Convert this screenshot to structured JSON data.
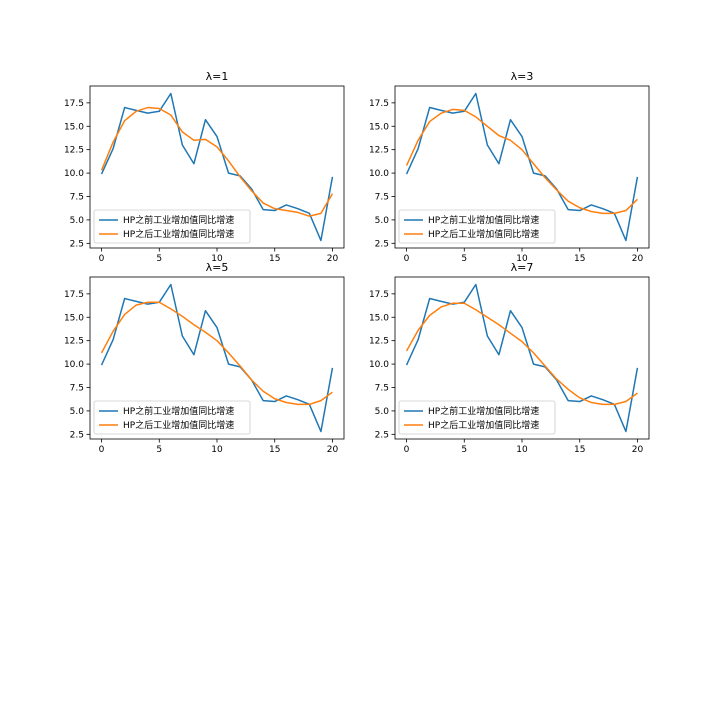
{
  "chart_data": [
    {
      "type": "line",
      "title": "λ=1",
      "x": [
        0,
        1,
        2,
        3,
        4,
        5,
        6,
        7,
        8,
        9,
        10,
        11,
        12,
        13,
        14,
        15,
        16,
        17,
        18,
        19,
        20
      ],
      "series": [
        {
          "name": "HP之前工业增加值同比增速",
          "color": "#1f77b4",
          "values": [
            9.9,
            12.6,
            17.0,
            16.7,
            16.4,
            16.6,
            18.5,
            13.0,
            11.0,
            15.7,
            13.9,
            10.0,
            9.7,
            8.3,
            6.1,
            6.0,
            6.6,
            6.2,
            5.7,
            2.8,
            9.6
          ]
        },
        {
          "name": "HP之后工业增加值同比增速",
          "color": "#ff7f0e",
          "values": [
            10.3,
            13.3,
            15.6,
            16.6,
            17.0,
            16.9,
            16.2,
            14.4,
            13.5,
            13.6,
            12.8,
            11.3,
            9.6,
            8.1,
            6.8,
            6.2,
            6.0,
            5.8,
            5.4,
            5.7,
            7.8
          ]
        }
      ],
      "xticks": [
        0,
        5,
        10,
        15,
        20
      ],
      "yticks": [
        "2.5",
        "5.0",
        "7.5",
        "10.0",
        "12.5",
        "15.0",
        "17.5"
      ],
      "xlim": [
        -1,
        21
      ],
      "ylim": [
        2.0,
        19.3
      ],
      "legend": "lower-left",
      "grid": false
    },
    {
      "type": "line",
      "title": "λ=3",
      "x": [
        0,
        1,
        2,
        3,
        4,
        5,
        6,
        7,
        8,
        9,
        10,
        11,
        12,
        13,
        14,
        15,
        16,
        17,
        18,
        19,
        20
      ],
      "series": [
        {
          "name": "HP之前工业增加值同比增速",
          "color": "#1f77b4",
          "values": [
            9.9,
            12.6,
            17.0,
            16.7,
            16.4,
            16.6,
            18.5,
            13.0,
            11.0,
            15.7,
            13.9,
            10.0,
            9.7,
            8.3,
            6.1,
            6.0,
            6.6,
            6.2,
            5.7,
            2.8,
            9.6
          ]
        },
        {
          "name": "HP之后工业增加值同比增速",
          "color": "#ff7f0e",
          "values": [
            10.8,
            13.5,
            15.5,
            16.4,
            16.8,
            16.7,
            16.0,
            15.0,
            14.0,
            13.5,
            12.5,
            11.0,
            9.5,
            8.2,
            7.0,
            6.3,
            5.9,
            5.7,
            5.7,
            6.0,
            7.2
          ]
        }
      ],
      "xticks": [
        0,
        5,
        10,
        15,
        20
      ],
      "yticks": [
        "2.5",
        "5.0",
        "7.5",
        "10.0",
        "12.5",
        "15.0",
        "17.5"
      ],
      "xlim": [
        -1,
        21
      ],
      "ylim": [
        2.0,
        19.3
      ],
      "legend": "lower-left",
      "grid": false
    },
    {
      "type": "line",
      "title": "λ=5",
      "x": [
        0,
        1,
        2,
        3,
        4,
        5,
        6,
        7,
        8,
        9,
        10,
        11,
        12,
        13,
        14,
        15,
        16,
        17,
        18,
        19,
        20
      ],
      "series": [
        {
          "name": "HP之前工业增加值同比增速",
          "color": "#1f77b4",
          "values": [
            9.9,
            12.6,
            17.0,
            16.7,
            16.4,
            16.6,
            18.5,
            13.0,
            11.0,
            15.7,
            13.9,
            10.0,
            9.7,
            8.3,
            6.1,
            6.0,
            6.6,
            6.2,
            5.7,
            2.8,
            9.6
          ]
        },
        {
          "name": "HP之后工业增加值同比增速",
          "color": "#ff7f0e",
          "values": [
            11.2,
            13.5,
            15.3,
            16.3,
            16.6,
            16.6,
            15.9,
            15.1,
            14.2,
            13.4,
            12.5,
            11.2,
            9.8,
            8.3,
            7.1,
            6.3,
            5.9,
            5.7,
            5.7,
            6.1,
            7.0
          ]
        }
      ],
      "xticks": [
        0,
        5,
        10,
        15,
        20
      ],
      "yticks": [
        "2.5",
        "5.0",
        "7.5",
        "10.0",
        "12.5",
        "15.0",
        "17.5"
      ],
      "xlim": [
        -1,
        21
      ],
      "ylim": [
        2.0,
        19.3
      ],
      "legend": "lower-left",
      "grid": false
    },
    {
      "type": "line",
      "title": "λ=7",
      "x": [
        0,
        1,
        2,
        3,
        4,
        5,
        6,
        7,
        8,
        9,
        10,
        11,
        12,
        13,
        14,
        15,
        16,
        17,
        18,
        19,
        20
      ],
      "series": [
        {
          "name": "HP之前工业增加值同比增速",
          "color": "#1f77b4",
          "values": [
            9.9,
            12.6,
            17.0,
            16.7,
            16.4,
            16.6,
            18.5,
            13.0,
            11.0,
            15.7,
            13.9,
            10.0,
            9.7,
            8.3,
            6.1,
            6.0,
            6.6,
            6.2,
            5.7,
            2.8,
            9.6
          ]
        },
        {
          "name": "HP之后工业增加值同比增速",
          "color": "#ff7f0e",
          "values": [
            11.4,
            13.6,
            15.2,
            16.1,
            16.5,
            16.5,
            15.8,
            15.0,
            14.2,
            13.3,
            12.4,
            11.2,
            9.8,
            8.4,
            7.3,
            6.4,
            5.9,
            5.7,
            5.7,
            6.0,
            6.9
          ]
        }
      ],
      "xticks": [
        0,
        5,
        10,
        15,
        20
      ],
      "yticks": [
        "2.5",
        "5.0",
        "7.5",
        "10.0",
        "12.5",
        "15.0",
        "17.5"
      ],
      "xlim": [
        -1,
        21
      ],
      "ylim": [
        2.0,
        19.3
      ],
      "legend": "lower-left",
      "grid": false
    }
  ]
}
